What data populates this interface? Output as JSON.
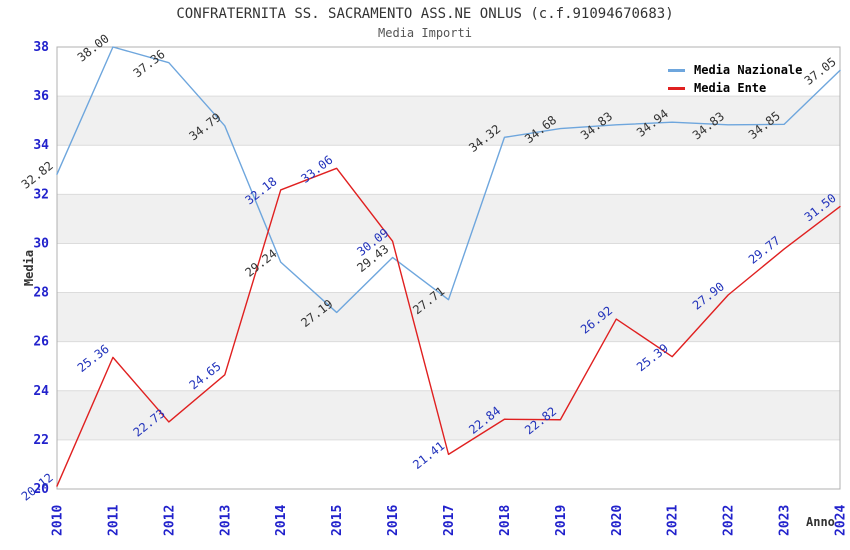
{
  "header": {
    "title": "CONFRATERNITA SS. SACRAMENTO ASS.NE ONLUS (c.f.91094670683)",
    "subtitle": "Media Importi"
  },
  "chart_data": {
    "type": "line",
    "title": "CONFRATERNITA SS. SACRAMENTO ASS.NE ONLUS (c.f.91094670683)",
    "subtitle": "Media Importi",
    "xlabel": "Anno",
    "ylabel": "Media",
    "x": [
      2010,
      2011,
      2012,
      2013,
      2014,
      2015,
      2016,
      2017,
      2018,
      2019,
      2020,
      2021,
      2022,
      2023,
      2024
    ],
    "ylim": [
      20,
      38
    ],
    "ytick_step": 2,
    "grid": "horizontal-lines-with-alternating-bands",
    "legend_position": "top-right-inside",
    "series": [
      {
        "name": "Media Nazionale",
        "color": "#6ea6dd",
        "label_color": "#333333",
        "values": [
          32.82,
          38.0,
          37.36,
          34.79,
          29.24,
          27.19,
          29.43,
          27.71,
          34.32,
          34.68,
          34.83,
          34.94,
          34.83,
          34.85,
          37.05
        ]
      },
      {
        "name": "Media Ente",
        "color": "#e02020",
        "label_color": "#2233bb",
        "values": [
          20.12,
          25.36,
          22.73,
          24.65,
          32.18,
          33.06,
          30.09,
          21.41,
          22.84,
          22.82,
          26.92,
          25.39,
          27.9,
          29.77,
          31.5
        ]
      }
    ],
    "colors": {
      "axis_tick_text": "#2222cc",
      "band_fill": "#f0f0f0",
      "grid_line": "#dcdcdc",
      "frame_line": "#b0b0b0",
      "background": "#ffffff"
    }
  }
}
